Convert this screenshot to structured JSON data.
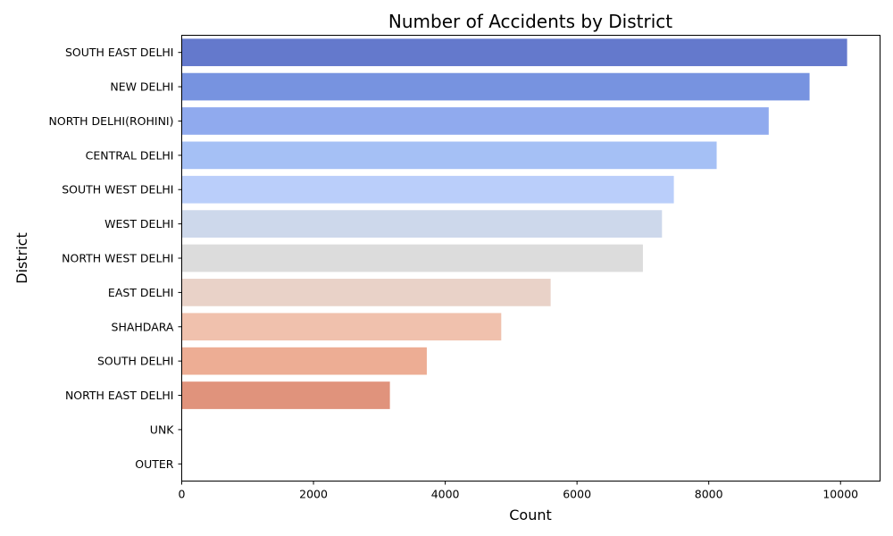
{
  "chart_data": {
    "type": "bar",
    "orientation": "horizontal",
    "title": "Number of Accidents by District",
    "xlabel": "Count",
    "ylabel": "District",
    "categories": [
      "SOUTH EAST DELHI",
      "NEW DELHI",
      "NORTH DELHI(ROHINI)",
      "CENTRAL DELHI",
      "SOUTH WEST DELHI",
      "WEST DELHI",
      "NORTH WEST DELHI",
      "EAST DELHI",
      "SHAHDARA",
      "SOUTH DELHI",
      "NORTH EAST DELHI",
      "UNK",
      "OUTER"
    ],
    "values": [
      10100,
      9530,
      8910,
      8120,
      7470,
      7290,
      7000,
      5600,
      4850,
      3720,
      3160,
      0,
      0
    ],
    "colors": [
      "#6479cc",
      "#7793e0",
      "#90aaee",
      "#a5c0f5",
      "#bacefa",
      "#cdd8eb",
      "#dcdcdc",
      "#e9d2c8",
      "#f0c1ad",
      "#edad94",
      "#e0937c",
      "#d97a66",
      "#cc5b4d"
    ],
    "xlim": [
      0,
      10600
    ],
    "xticks": [
      0,
      2000,
      4000,
      6000,
      8000,
      10000
    ],
    "grid": false,
    "legend": "none"
  }
}
